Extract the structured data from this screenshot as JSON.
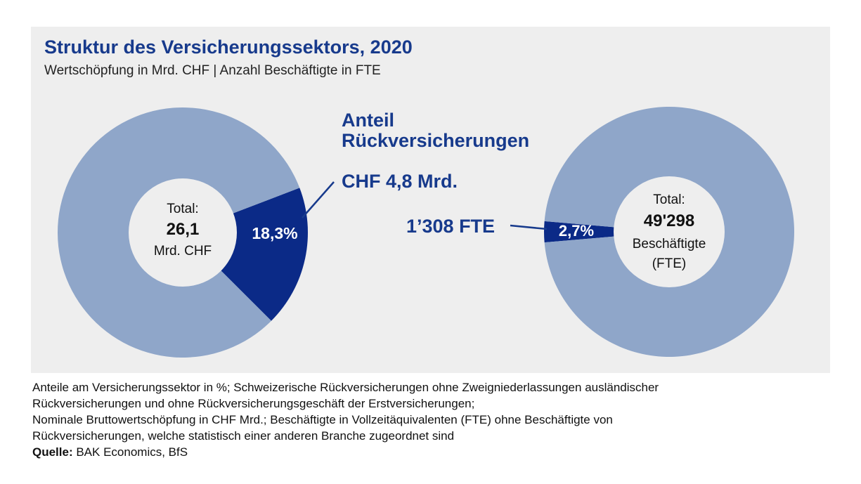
{
  "header": {
    "title": "Struktur des Versicherungssektors, 2020",
    "subtitle": "Wertschöpfung in Mrd. CHF | Anzahl Beschäftigte in FTE"
  },
  "colors": {
    "panel_bg": "#eeeeee",
    "title": "#173a8c",
    "rest_segment": "#8fa6c9",
    "highlight_segment": "#0b2a87",
    "center": "#eeeeee"
  },
  "chart_data": [
    {
      "type": "pie",
      "variant": "donut",
      "slices": [
        {
          "label": "Rückversicherungen",
          "value": 18.3,
          "value_label": "18,3%"
        },
        {
          "label": "",
          "value": 81.7
        }
      ],
      "center_lines": [
        "Total:",
        "26,1",
        "Mrd. CHF"
      ],
      "callout": "CHF 4,8 Mrd."
    },
    {
      "type": "pie",
      "variant": "donut",
      "slices": [
        {
          "label": "Rückversicherungen",
          "value": 2.7,
          "value_label": "2,7%"
        },
        {
          "label": "",
          "value": 97.3
        }
      ],
      "center_lines": [
        "Total:",
        "49'298",
        "Beschäftigte",
        "(FTE)"
      ],
      "callout": "1’308 FTE"
    }
  ],
  "middle_label": {
    "line1": "Anteil",
    "line2": "Rückversicherungen"
  },
  "notes": {
    "line1": "Anteile am Versicherungssektor in %; Schweizerische Rückversicherungen ohne Zweigniederlassungen ausländischer",
    "line2": "Rückversicherungen und ohne Rückversicherungsgeschäft der Erstversicherungen;",
    "line3": "Nominale Bruttowertschöpfung in CHF Mrd.; Beschäftigte in Vollzeitäquivalenten (FTE) ohne Beschäftigte von",
    "line4": "Rückversicherungen, welche statistisch einer anderen Branche zugeordnet sind",
    "source_label": "Quelle:",
    "source_text": " BAK Economics, BfS"
  }
}
